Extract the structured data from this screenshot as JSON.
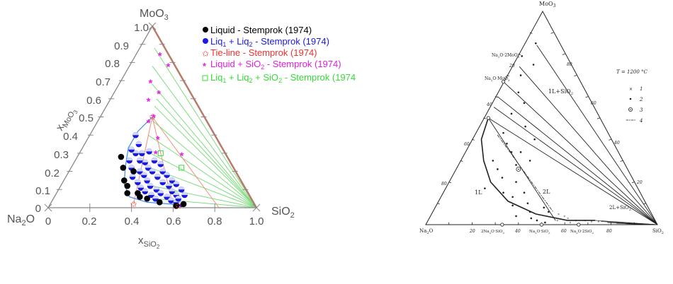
{
  "left_panel": {
    "apex_top": "MoO",
    "apex_top_sub": "3",
    "apex_left": "Na",
    "apex_left_sub": "2",
    "apex_left_tail": "O",
    "apex_right": "SiO",
    "apex_right_sub": "2",
    "axis_y_main": "x",
    "axis_y_sub": "MoO",
    "axis_y_sub2": "3",
    "axis_x_main": "x",
    "axis_x_sub": "SiO",
    "axis_x_sub2": "2",
    "y_ticks": [
      "0",
      "0.1",
      "0.2",
      "0.3",
      "0.4",
      "0.5",
      "0.6",
      "0.7",
      "0.8",
      "0.9",
      "1.0"
    ],
    "x_ticks": [
      "0",
      "0.2",
      "0.4",
      "0.6",
      "0.8",
      "1.0"
    ],
    "legend": [
      {
        "a": "Liquid - Stemprok (1974)",
        "color": "#000000",
        "marker": "disc"
      },
      {
        "a": "Liq",
        "b": "1",
        "c": " + Liq",
        "d": "2",
        "e": " - Stemprok (1974)",
        "color": "#1a1adc",
        "marker": "half-disc"
      },
      {
        "a": "Tie-line - Stemprok (1974)",
        "color": "#f03030",
        "marker": "star"
      },
      {
        "a": "Liquid + SiO",
        "b": "2",
        "c": " - Stemprok (1974)",
        "color": "#e020e0",
        "marker": "asterisk"
      },
      {
        "a": "Liq",
        "b": "1",
        "c": " + Liq",
        "d": "2",
        "e": " + SiO",
        "f": "2",
        "g": " - Stemprok (1974",
        "color": "#33dd33",
        "marker": "square"
      }
    ]
  },
  "chart_data": [
    {
      "type": "scatter",
      "xlabel": "xSiO2",
      "ylabel": "xMoO3",
      "xlim": [
        0,
        1
      ],
      "ylim": [
        0,
        1
      ],
      "series": [
        {
          "name": "Liquid - Stemprok (1974)",
          "points": [
            [
              0.21,
              0.28
            ],
            [
              0.25,
              0.22
            ],
            [
              0.29,
              0.15
            ],
            [
              0.32,
              0.12
            ],
            [
              0.34,
              0.08
            ],
            [
              0.39,
              0.08
            ],
            [
              0.41,
              0.06
            ],
            [
              0.45,
              0.05
            ],
            [
              0.52,
              0.03
            ],
            [
              0.31,
              0.2
            ],
            [
              0.61,
              0.01
            ],
            [
              0.64,
              0.02
            ]
          ]
        },
        {
          "name": "Liq1 + Liq2 - Stemprok (1974)",
          "points": [
            [
              0.22,
              0.4
            ],
            [
              0.26,
              0.35
            ],
            [
              0.3,
              0.3
            ],
            [
              0.34,
              0.25
            ],
            [
              0.37,
              0.22
            ],
            [
              0.4,
              0.2
            ],
            [
              0.44,
              0.17
            ],
            [
              0.48,
              0.14
            ],
            [
              0.52,
              0.12
            ],
            [
              0.55,
              0.09
            ],
            [
              0.58,
              0.07
            ],
            [
              0.27,
              0.3
            ],
            [
              0.31,
              0.26
            ],
            [
              0.34,
              0.2
            ],
            [
              0.37,
              0.18
            ],
            [
              0.4,
              0.15
            ],
            [
              0.43,
              0.12
            ],
            [
              0.47,
              0.1
            ],
            [
              0.5,
              0.08
            ],
            [
              0.54,
              0.06
            ],
            [
              0.57,
              0.04
            ],
            [
              0.6,
              0.03
            ],
            [
              0.63,
              0.02
            ],
            [
              0.29,
              0.22
            ],
            [
              0.32,
              0.17
            ],
            [
              0.36,
              0.14
            ],
            [
              0.39,
              0.11
            ],
            [
              0.42,
              0.09
            ],
            [
              0.46,
              0.07
            ],
            [
              0.49,
              0.05
            ],
            [
              0.33,
              0.31
            ],
            [
              0.38,
              0.26
            ],
            [
              0.42,
              0.24
            ],
            [
              0.45,
              0.2
            ],
            [
              0.48,
              0.18
            ],
            [
              0.52,
              0.15
            ],
            [
              0.55,
              0.13
            ],
            [
              0.59,
              0.1
            ],
            [
              0.62,
              0.07
            ],
            [
              0.6,
              0.05
            ],
            [
              0.26,
              0.26
            ],
            [
              0.24,
              0.32
            ]
          ]
        },
        {
          "name": "Tie-line - Stemprok (1974)",
          "points": [
            [
              0.25,
              0.5
            ],
            [
              0.4,
              0.02
            ],
            [
              0.62,
              0.01
            ]
          ]
        },
        {
          "name": "Liquid + SiO2 - Stemprok (1974)",
          "points": [
            [
              0.12,
              0.84
            ],
            [
              0.19,
              0.78
            ],
            [
              0.15,
              0.69
            ],
            [
              0.22,
              0.63
            ],
            [
              0.19,
              0.59
            ],
            [
              0.26,
              0.5
            ],
            [
              0.25,
              0.47
            ],
            [
              0.34,
              0.38
            ],
            [
              0.37,
              0.3
            ],
            [
              0.5,
              0.29
            ]
          ]
        },
        {
          "name": "Liq1 + Liq2 + SiO2 - Stemprok (1974",
          "points": [
            [
              0.39,
              0.3
            ],
            [
              0.53,
              0.22
            ]
          ]
        }
      ]
    }
  ],
  "right_panel": {
    "apex_top": "MoO",
    "apex_top_sub": "3",
    "apex_left": "Na",
    "apex_left_sub": "2",
    "apex_left_tail": "O",
    "apex_right": "SiO",
    "apex_right_sub": "2",
    "compound_1": "Na",
    "compound_1_s1": "2",
    "compound_1_t": "O·2MoO",
    "compound_1_s2": "3",
    "compound_2": "Na",
    "compound_2_s1": "2",
    "compound_2_t": "O·MoO",
    "compound_2_s2": "3",
    "region_1": "1L+SiO",
    "region_1_sub": "2",
    "region_2": "1L",
    "region_3": "2L",
    "region_4": "2L+SiO",
    "region_4_sub": "2",
    "bottom_compounds": [
      {
        "a": "2Na",
        "b": "2",
        "c": "O·SiO",
        "d": "2"
      },
      {
        "a": "Na",
        "b": "2",
        "c": "O·SiO",
        "d": "2"
      },
      {
        "a": "Na",
        "b": "2",
        "c": "O·2SiO",
        "d": "2"
      }
    ],
    "bottom_ticks": [
      "20",
      "40",
      "60",
      "80"
    ],
    "left_ticks": [
      "20",
      "40",
      "60",
      "80"
    ],
    "right_ticks": [
      "80",
      "60",
      "40",
      "20"
    ],
    "temp": "T = 1200 °C",
    "key": [
      "1",
      "2",
      "3",
      "4"
    ]
  }
}
